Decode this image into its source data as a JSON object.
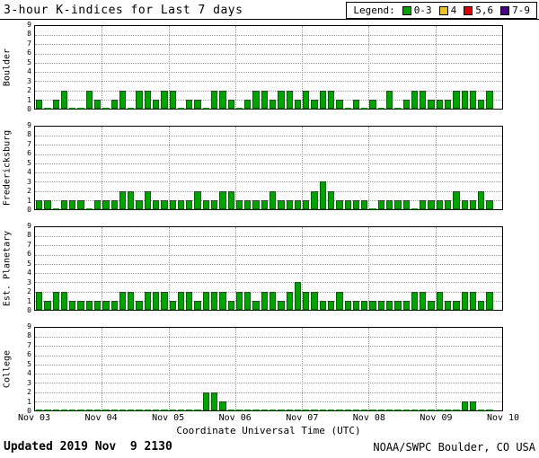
{
  "legend": {
    "label": "Legend:",
    "items": [
      {
        "label": "0-3",
        "color": "#00a400"
      },
      {
        "label": "4",
        "color": "#f0c020"
      },
      {
        "label": "5,6",
        "color": "#e00000"
      },
      {
        "label": "7-9",
        "color": "#4b0082"
      }
    ]
  },
  "footer": {
    "updated": "Updated 2019 Nov  9 2130",
    "source": "NOAA/SWPC Boulder, CO USA"
  },
  "chart_data": {
    "type": "bar",
    "title": "3-hour K-indices for Last 7 days",
    "xlabel": "Coordinate Universal Time (UTC)",
    "ylim": [
      0,
      9
    ],
    "y_ticks": [
      0,
      1,
      2,
      3,
      4,
      5,
      6,
      7,
      8,
      9
    ],
    "x_tick_labels": [
      "Nov 03",
      "Nov 04",
      "Nov 05",
      "Nov 06",
      "Nov 07",
      "Nov 08",
      "Nov 09",
      "Nov 10"
    ],
    "days": 7,
    "bars_per_day": 8,
    "interval_hours": 3,
    "grid": "dotted",
    "legend_position": "top-right",
    "color_rules": [
      {
        "range": "0-3",
        "color": "#00a400"
      },
      {
        "range": "4",
        "color": "#f0c020"
      },
      {
        "range": "5-6",
        "color": "#e00000"
      },
      {
        "range": "7-9",
        "color": "#4b0082"
      }
    ],
    "panels": [
      {
        "station": "Boulder",
        "values": [
          1,
          0,
          1,
          2,
          0,
          0,
          2,
          1,
          0,
          1,
          2,
          0,
          2,
          2,
          1,
          2,
          2,
          0,
          1,
          1,
          0,
          2,
          2,
          1,
          0,
          1,
          2,
          2,
          1,
          2,
          2,
          1,
          2,
          1,
          2,
          2,
          1,
          0,
          1,
          0,
          1,
          0,
          2,
          0,
          1,
          2,
          2,
          1,
          1,
          1,
          2,
          2,
          2,
          1,
          2
        ]
      },
      {
        "station": "Fredericksburg",
        "values": [
          1,
          1,
          0,
          1,
          1,
          1,
          0,
          1,
          1,
          1,
          2,
          2,
          1,
          2,
          1,
          1,
          1,
          1,
          1,
          2,
          1,
          1,
          2,
          2,
          1,
          1,
          1,
          1,
          2,
          1,
          1,
          1,
          1,
          2,
          3,
          2,
          1,
          1,
          1,
          1,
          0,
          1,
          1,
          1,
          1,
          0,
          1,
          1,
          1,
          1,
          2,
          1,
          1,
          2,
          1
        ]
      },
      {
        "station": "Est. Planetary",
        "values": [
          2,
          1,
          2,
          2,
          1,
          1,
          1,
          1,
          1,
          1,
          2,
          2,
          1,
          2,
          2,
          2,
          1,
          2,
          2,
          1,
          2,
          2,
          2,
          1,
          2,
          2,
          1,
          2,
          2,
          1,
          2,
          3,
          2,
          2,
          1,
          1,
          2,
          1,
          1,
          1,
          1,
          1,
          1,
          1,
          1,
          2,
          2,
          1,
          2,
          1,
          1,
          2,
          2,
          1,
          2
        ]
      },
      {
        "station": "College",
        "values": [
          0,
          0,
          0,
          0,
          0,
          0,
          0,
          0,
          0,
          0,
          0,
          0,
          0,
          0,
          0,
          0,
          0,
          0,
          0,
          0,
          2,
          2,
          1,
          0,
          0,
          0,
          0,
          0,
          0,
          0,
          0,
          0,
          0,
          0,
          0,
          0,
          0,
          0,
          0,
          0,
          0,
          0,
          0,
          0,
          0,
          0,
          0,
          0,
          0,
          0,
          0,
          1,
          1,
          0,
          0
        ]
      }
    ]
  }
}
